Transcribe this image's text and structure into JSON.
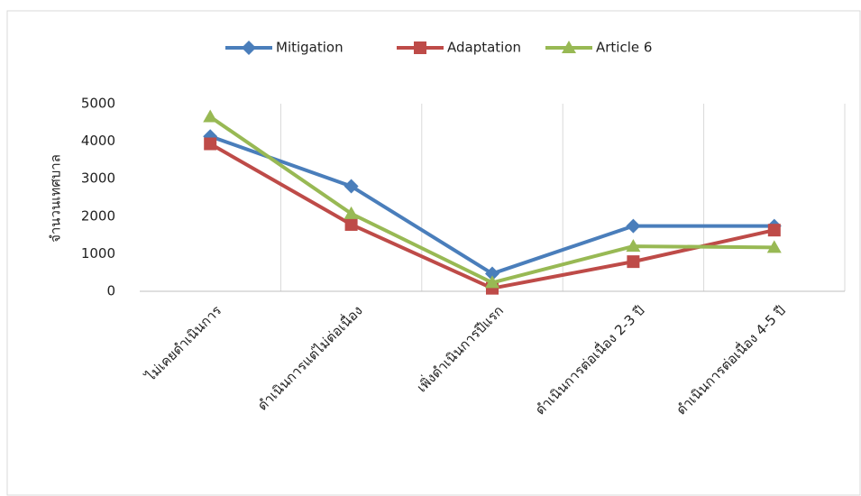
{
  "chart_data": {
    "type": "line",
    "y_label": "จำนวนเทศบาล",
    "categories": [
      "ไม่เคยดำเนินการ",
      "ดำเนินการแต่ไม่ต่อเนื่อง",
      "เพิ่งดำเนินการปีแรก",
      "ดำเนินการต่อเนื่อง 2-3 ปี",
      "ดำเนินการต่อเนื่อง 4-5 ปี"
    ],
    "series": [
      {
        "name": "Mitigation",
        "color": "#4a7ebb",
        "marker": "diamond",
        "values": [
          4130,
          2800,
          470,
          1740,
          1740
        ]
      },
      {
        "name": "Adaptation",
        "color": "#be4b48",
        "marker": "square",
        "values": [
          3930,
          1780,
          80,
          790,
          1630
        ]
      },
      {
        "name": "Article 6",
        "color": "#98b954",
        "marker": "triangle",
        "values": [
          4650,
          2070,
          230,
          1200,
          1170
        ]
      }
    ],
    "ylim": [
      0,
      5000
    ],
    "yticks": [
      0,
      1000,
      2000,
      3000,
      4000,
      5000
    ],
    "grid": true,
    "legend": "top"
  }
}
